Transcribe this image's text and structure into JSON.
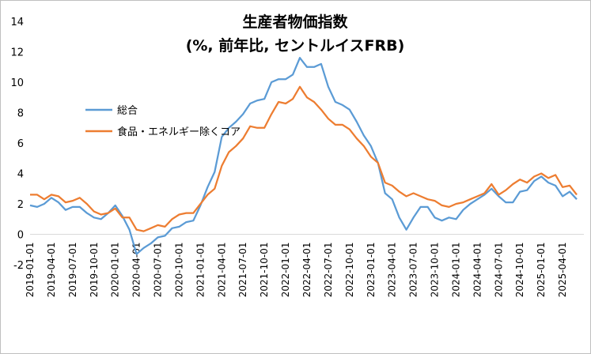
{
  "chart_data": {
    "type": "line",
    "title": "生産者物価指数",
    "subtitle": "(%, 前年比, セントルイスFRB)",
    "ylim": [
      -2,
      14
    ],
    "yticks": [
      -2,
      0,
      2,
      4,
      6,
      8,
      10,
      12,
      14
    ],
    "x_tick_labels": [
      "2019-01-01",
      "2019-04-01",
      "2019-07-01",
      "2019-10-01",
      "2020-01-01",
      "2020-04-01",
      "2020-07-01",
      "2020-10-01",
      "2021-01-01",
      "2021-04-01",
      "2021-07-01",
      "2021-10-01",
      "2022-01-01",
      "2022-04-01",
      "2022-07-01",
      "2022-10-01",
      "2023-01-01",
      "2023-04-01",
      "2023-07-01",
      "2023-10-01",
      "2024-01-01",
      "2024-04-01",
      "2024-07-01",
      "2024-10-01",
      "2025-01-01",
      "2025-04-01"
    ],
    "x_start": "2019-01",
    "x_end": "2025-07",
    "legend_position": "upper-left",
    "grid": false,
    "series": [
      {
        "name": "総合",
        "color": "#5b9bd5",
        "values": [
          1.9,
          1.8,
          2.0,
          2.4,
          2.1,
          1.6,
          1.8,
          1.8,
          1.4,
          1.1,
          1.0,
          1.4,
          1.9,
          1.2,
          0.3,
          -1.3,
          -0.9,
          -0.6,
          -0.2,
          -0.1,
          0.4,
          0.5,
          0.8,
          0.9,
          1.9,
          3.1,
          4.1,
          6.4,
          7.0,
          7.4,
          7.9,
          8.6,
          8.8,
          8.9,
          10.0,
          10.2,
          10.2,
          10.5,
          11.6,
          11.0,
          11.0,
          11.2,
          9.7,
          8.7,
          8.5,
          8.2,
          7.4,
          6.5,
          5.8,
          4.7,
          2.7,
          2.3,
          1.1,
          0.3,
          1.1,
          1.8,
          1.8,
          1.1,
          0.9,
          1.1,
          1.0,
          1.6,
          2.0,
          2.3,
          2.6,
          3.0,
          2.5,
          2.1,
          2.1,
          2.8,
          2.9,
          3.5,
          3.8,
          3.4,
          3.2,
          2.5,
          2.8,
          2.3
        ]
      },
      {
        "name": "食品・エネルギー除くコア",
        "color": "#ed7d31",
        "values": [
          2.6,
          2.6,
          2.3,
          2.6,
          2.5,
          2.1,
          2.2,
          2.4,
          2.0,
          1.5,
          1.3,
          1.4,
          1.7,
          1.1,
          1.1,
          0.3,
          0.2,
          0.4,
          0.6,
          0.5,
          1.0,
          1.3,
          1.4,
          1.4,
          2.0,
          2.6,
          3.0,
          4.5,
          5.4,
          5.8,
          6.3,
          7.1,
          7.0,
          7.0,
          7.9,
          8.7,
          8.6,
          8.9,
          9.7,
          9.0,
          8.7,
          8.2,
          7.6,
          7.2,
          7.2,
          6.9,
          6.3,
          5.8,
          5.1,
          4.7,
          3.4,
          3.2,
          2.8,
          2.5,
          2.7,
          2.5,
          2.3,
          2.2,
          1.9,
          1.8,
          2.0,
          2.1,
          2.3,
          2.5,
          2.7,
          3.3,
          2.6,
          2.9,
          3.3,
          3.6,
          3.4,
          3.8,
          4.0,
          3.7,
          3.9,
          3.1,
          3.2,
          2.6
        ]
      }
    ]
  }
}
